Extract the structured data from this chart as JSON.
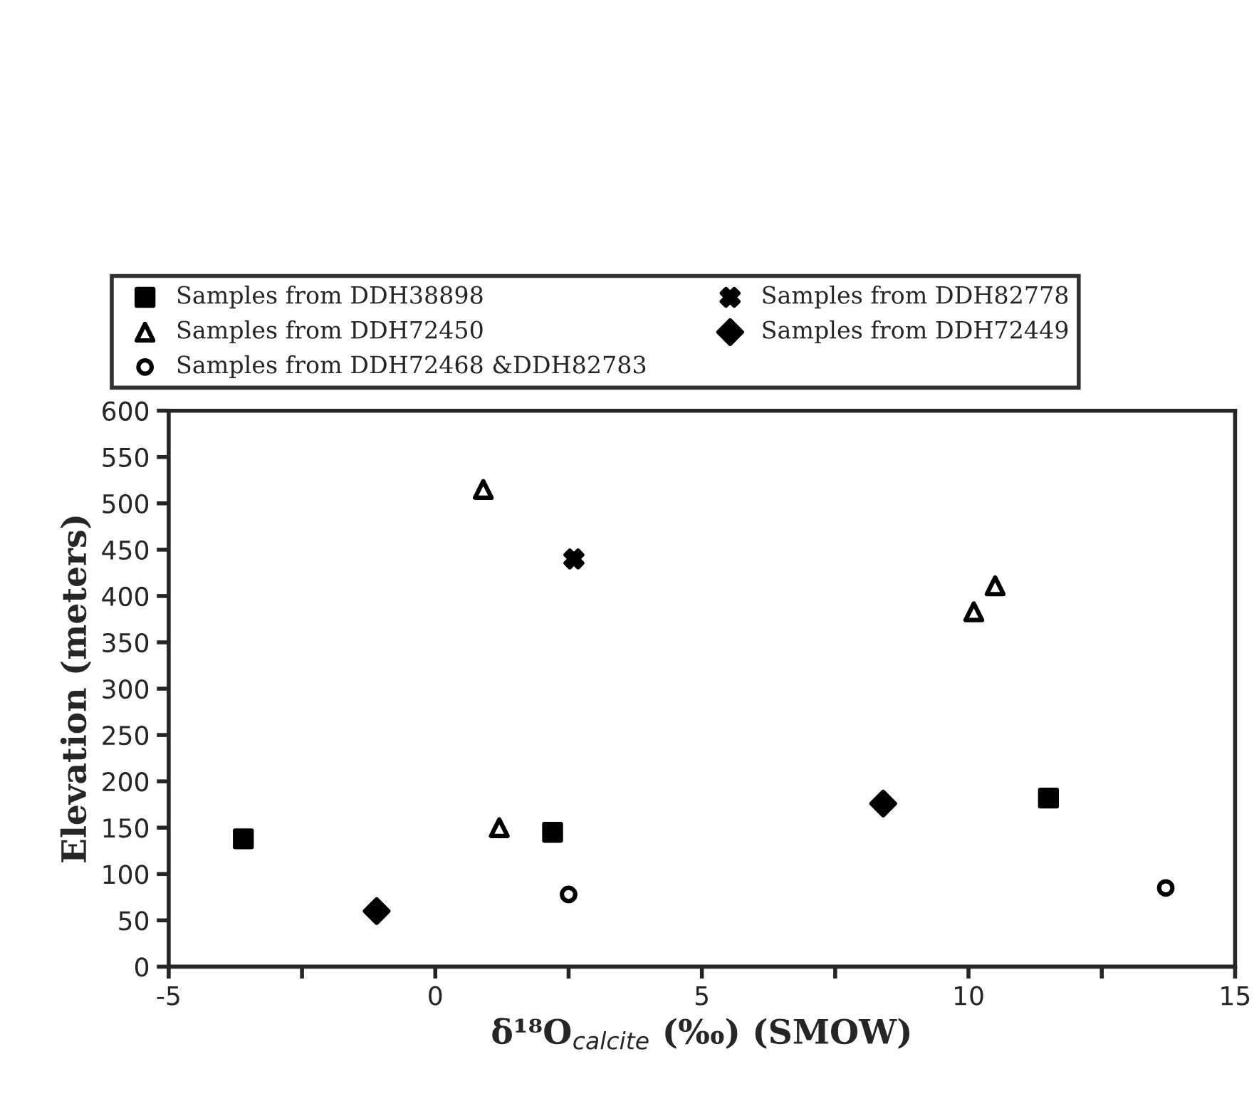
{
  "chart_data": {
    "type": "scatter",
    "xlabel": "δ¹⁸O$_{calcite}$ (‰) (SMOW)",
    "ylabel": "Elevation (meters)",
    "series": [
      {
        "name": "Samples from DDH38898",
        "color": "#000000",
        "marker": "square",
        "x": [
          -3.6,
          2.2,
          11.5
        ],
        "values": [
          138,
          145,
          182
        ]
      },
      {
        "name": "Samples from DDH72450",
        "color": "#000000",
        "marker": "triangle",
        "x": [
          0.9,
          1.2,
          10.1,
          10.5
        ],
        "values": [
          515,
          150,
          383,
          411
        ]
      },
      {
        "name": "Samples from DDH72468 &DDH82783",
        "color": "#000000",
        "marker": "circle",
        "x": [
          2.5,
          13.7
        ],
        "values": [
          78,
          85
        ]
      },
      {
        "name": "Samples from DDH82778",
        "color": "#000000",
        "marker": "cross",
        "x": [
          2.6
        ],
        "values": [
          440
        ]
      },
      {
        "name": "Samples from DDH72449",
        "color": "#000000",
        "marker": "diamond",
        "x": [
          -1.1,
          8.4
        ],
        "values": [
          60,
          176
        ]
      }
    ],
    "xlim": [
      -5,
      15
    ],
    "xticks": [
      -5,
      {
        "value": -2.5,
        "label": null
      },
      0,
      {
        "value": 2.5,
        "label": null
      },
      5,
      {
        "value": 7.5,
        "label": null
      },
      10,
      {
        "value": 12.5,
        "label": null
      },
      15
    ],
    "ylim": [
      0,
      600
    ],
    "yticks": [
      0,
      50,
      100,
      150,
      200,
      250,
      300,
      350,
      400,
      450,
      500,
      550,
      600
    ],
    "grid": false,
    "legend": "top"
  }
}
